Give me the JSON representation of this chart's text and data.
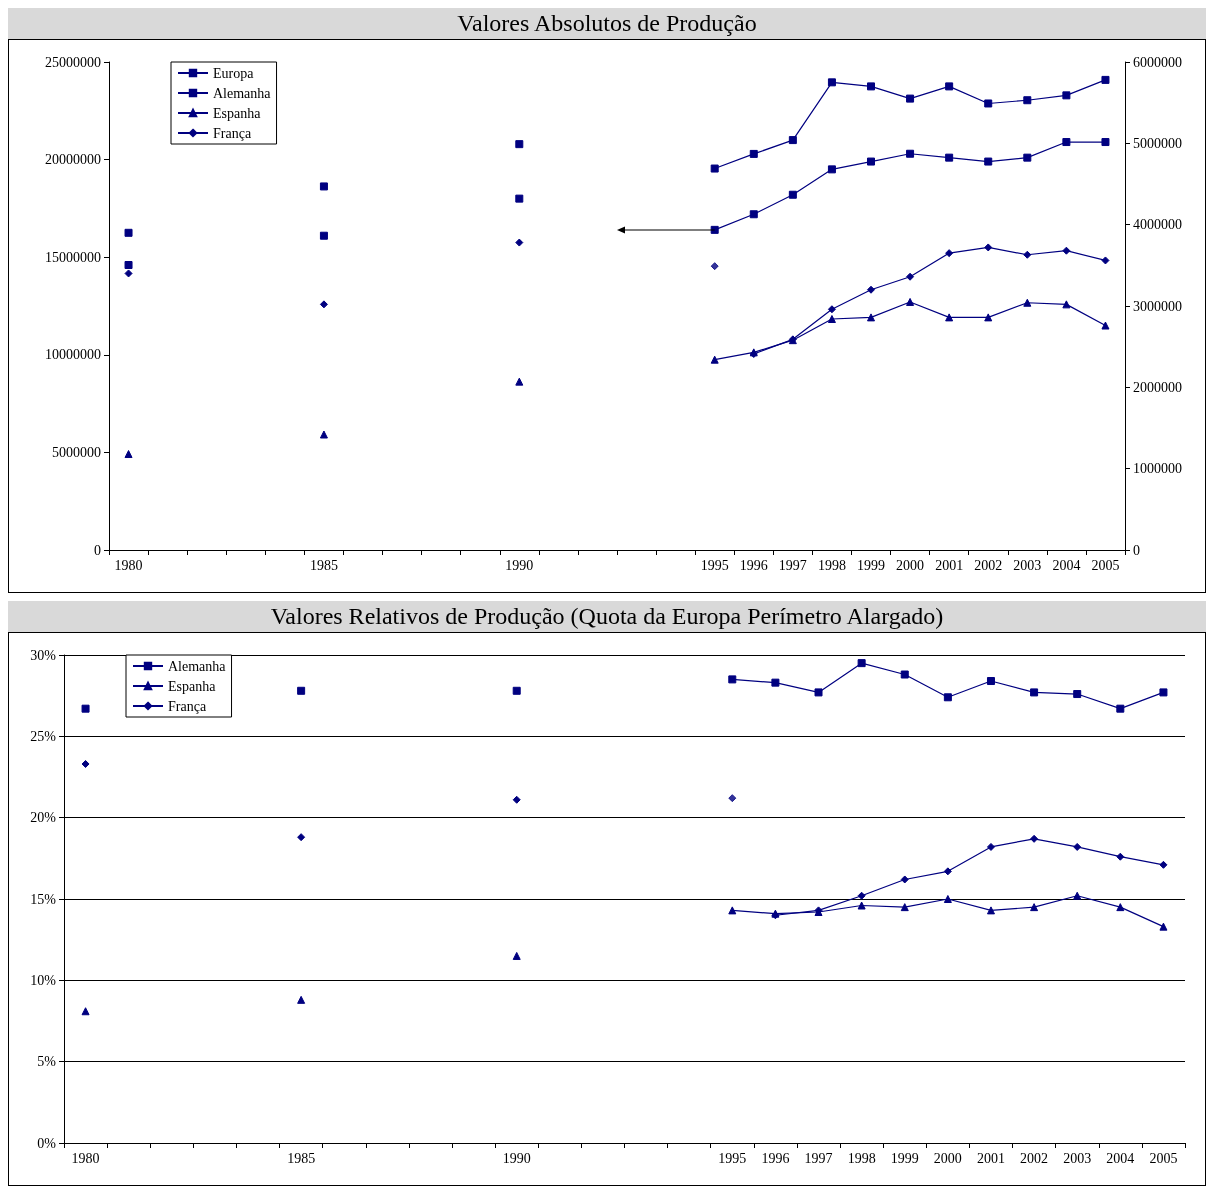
{
  "chart_data": [
    {
      "type": "line",
      "title": "Valores Absolutos de Produção",
      "categories": [
        "1980",
        null,
        null,
        null,
        null,
        "1985",
        null,
        null,
        null,
        null,
        "1990",
        null,
        null,
        null,
        null,
        "1995",
        "1996",
        "1997",
        "1998",
        "1999",
        "2000",
        "2001",
        "2002",
        "2003",
        "2004",
        "2005"
      ],
      "series": [
        {
          "name": "Europa",
          "color": "#000080",
          "marker": "square",
          "values": [
            14600000,
            null,
            null,
            null,
            null,
            16100000,
            null,
            null,
            null,
            null,
            18000000,
            null,
            null,
            null,
            null,
            16400000,
            17200000,
            18200000,
            19500000,
            19900000,
            20300000,
            20100000,
            19900000,
            20100000,
            20900000,
            20900000
          ]
        },
        {
          "name": "Alemanha",
          "color": "#000080",
          "marker": "square",
          "axis": "y2",
          "values": [
            3900000,
            null,
            null,
            null,
            null,
            4470000,
            null,
            null,
            null,
            null,
            4990000,
            null,
            null,
            null,
            null,
            4690000,
            4870000,
            5040000,
            5750000,
            5700000,
            5550000,
            5700000,
            5490000,
            5530000,
            5590000,
            5780000
          ]
        },
        {
          "name": "Espanha",
          "color": "#000080",
          "marker": "triangle",
          "axis": "y2",
          "values": [
            1180000,
            null,
            null,
            null,
            null,
            1420000,
            null,
            null,
            null,
            null,
            2070000,
            null,
            null,
            null,
            null,
            2340000,
            2430000,
            2580000,
            2840000,
            2860000,
            3050000,
            2860000,
            2860000,
            3040000,
            3020000,
            2760000
          ]
        },
        {
          "name": "França",
          "color": "#000080",
          "marker": "diamond",
          "axis": "y2",
          "values": [
            3400000,
            null,
            null,
            null,
            null,
            3020000,
            null,
            null,
            null,
            null,
            3780000,
            null,
            null,
            null,
            null,
            null,
            2410000,
            2590000,
            2960000,
            3200000,
            3360000,
            3650000,
            3720000,
            3630000,
            3680000,
            3560000
          ]
        },
        {
          "type": "scatter",
          "color": "#000080",
          "marker": "diamond",
          "axis": "y2",
          "values": [
            null,
            null,
            null,
            null,
            null,
            null,
            null,
            null,
            null,
            null,
            null,
            null,
            null,
            null,
            null,
            3490000,
            null,
            null,
            null,
            null,
            null,
            null,
            null,
            null,
            null,
            null
          ]
        }
      ],
      "ylim": [
        0,
        25000000
      ],
      "yticks": [
        0,
        5000000,
        10000000,
        15000000,
        20000000,
        25000000
      ],
      "y2lim": [
        0,
        6000000
      ],
      "y2ticks": [
        0,
        1000000,
        2000000,
        3000000,
        4000000,
        5000000,
        6000000
      ],
      "grid": false,
      "legend": "top left"
    },
    {
      "type": "line",
      "title": "Valores Relativos de Produção (Quota da Europa Perímetro Alargado)",
      "categories": [
        "1980",
        null,
        null,
        null,
        null,
        "1985",
        null,
        null,
        null,
        null,
        "1990",
        null,
        null,
        null,
        null,
        "1995",
        "1996",
        "1997",
        "1998",
        "1999",
        "2000",
        "2001",
        "2002",
        "2003",
        "2004",
        "2005"
      ],
      "series": [
        {
          "name": "Alemanha",
          "color": "#000080",
          "marker": "square",
          "values": [
            26.7,
            null,
            null,
            null,
            null,
            27.8,
            null,
            null,
            null,
            null,
            27.8,
            null,
            null,
            null,
            null,
            28.5,
            28.3,
            27.7,
            29.5,
            28.8,
            27.4,
            28.4,
            27.7,
            27.6,
            26.7,
            27.7
          ]
        },
        {
          "name": "Espanha",
          "color": "#000080",
          "marker": "triangle",
          "values": [
            8.1,
            null,
            null,
            null,
            null,
            8.8,
            null,
            null,
            null,
            null,
            11.5,
            null,
            null,
            null,
            null,
            14.3,
            14.1,
            14.2,
            14.6,
            14.5,
            15.0,
            14.3,
            14.5,
            15.2,
            14.5,
            13.3
          ]
        },
        {
          "name": "França",
          "color": "#000080",
          "marker": "diamond",
          "values": [
            23.3,
            null,
            null,
            null,
            null,
            18.8,
            null,
            null,
            null,
            null,
            21.1,
            null,
            null,
            null,
            null,
            null,
            14.0,
            14.3,
            15.2,
            16.2,
            16.7,
            18.2,
            18.7,
            18.2,
            17.6,
            17.1
          ]
        },
        {
          "type": "scatter",
          "color": "#000080",
          "marker": "diamond",
          "values": [
            null,
            null,
            null,
            null,
            null,
            null,
            null,
            null,
            null,
            null,
            null,
            null,
            null,
            null,
            null,
            21.2,
            null,
            null,
            null,
            null,
            null,
            null,
            null,
            null,
            null,
            null
          ]
        }
      ],
      "ylim": [
        0,
        30
      ],
      "yticks": [
        {
          "value": 0,
          "label": "0%"
        },
        {
          "value": 5,
          "label": "5%"
        },
        {
          "value": 10,
          "label": "10%"
        },
        {
          "value": 15,
          "label": "15%"
        },
        {
          "value": 20,
          "label": "20%"
        },
        {
          "value": 25,
          "label": "25%"
        },
        {
          "value": 30,
          "label": "30%"
        }
      ],
      "grid": "y",
      "legend": "top left"
    }
  ]
}
